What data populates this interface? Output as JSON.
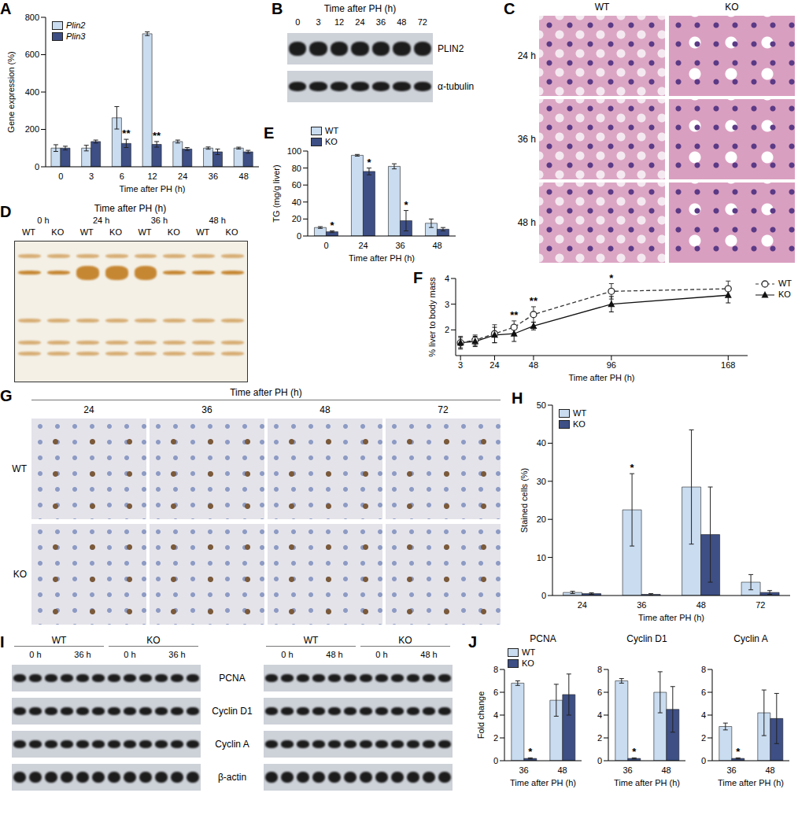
{
  "chart_data": [
    {
      "panel": "A",
      "type": "bar",
      "y_label": "Gene expression (%)",
      "x_label": "Time after PH (h)",
      "categories": [
        "0",
        "3",
        "6",
        "12",
        "24",
        "36",
        "48"
      ],
      "series": [
        {
          "name": "Plin2",
          "color": "#c9dcf0",
          "values": [
            100,
            100,
            262,
            712,
            135,
            100,
            100
          ],
          "errors": [
            18,
            15,
            60,
            10,
            8,
            6,
            5
          ]
        },
        {
          "name": "Plin3",
          "color": "#3d4f85",
          "values": [
            100,
            135,
            125,
            120,
            95,
            80,
            80
          ],
          "errors": [
            10,
            8,
            22,
            15,
            8,
            15,
            8
          ],
          "annotations": [
            null,
            null,
            "**",
            "**",
            null,
            null,
            null
          ]
        }
      ],
      "ylim": [
        0,
        800
      ],
      "yticks": [
        0,
        200,
        400,
        600,
        800
      ],
      "legend": "upper left"
    },
    {
      "panel": "E",
      "type": "bar",
      "y_label": "TG (mg/g liver)",
      "x_label": "Time after PH (h)",
      "categories": [
        "0",
        "24",
        "36",
        "48"
      ],
      "series": [
        {
          "name": "WT",
          "color": "#c9dcf0",
          "values": [
            10,
            95,
            82,
            15
          ],
          "errors": [
            1,
            1,
            3,
            5
          ]
        },
        {
          "name": "KO",
          "color": "#3d4f85",
          "values": [
            5,
            76,
            18,
            8
          ],
          "errors": [
            1,
            4,
            12,
            2
          ],
          "annotations": [
            "*",
            "*",
            "*",
            null
          ]
        }
      ],
      "ylim": [
        0,
        100
      ],
      "yticks": [
        0,
        20,
        40,
        60,
        80,
        100
      ],
      "legend": "top"
    },
    {
      "panel": "F",
      "type": "line",
      "y_label": "% liver to body mass",
      "x_label": "Time after PH (h)",
      "x": [
        3,
        12,
        24,
        36,
        48,
        96,
        168
      ],
      "xlim": [
        0,
        180
      ],
      "xticks": [
        3,
        24,
        48,
        96,
        168
      ],
      "ylim": [
        1,
        4
      ],
      "yticks": [
        2,
        3,
        4
      ],
      "legend": "right",
      "series": [
        {
          "name": "WT",
          "color": "#333333",
          "marker": "circle",
          "line_style": "dashed",
          "values": [
            1.5,
            1.6,
            1.85,
            2.1,
            2.6,
            3.5,
            3.6
          ],
          "errors": [
            0.25,
            0.2,
            0.35,
            0.25,
            0.3,
            0.3,
            0.3
          ],
          "annotations": [
            null,
            null,
            null,
            "**",
            "**",
            "*",
            null
          ]
        },
        {
          "name": "KO",
          "color": "#111111",
          "marker": "triangle",
          "line_style": "solid",
          "values": [
            1.5,
            1.55,
            1.8,
            1.85,
            2.15,
            3.0,
            3.35
          ],
          "errors": [
            0.2,
            0.2,
            0.3,
            0.3,
            0.15,
            0.3,
            0.3
          ]
        }
      ]
    },
    {
      "panel": "H",
      "type": "bar",
      "y_label": "Stained cells (%)",
      "x_label": "Time after PH (h)",
      "categories": [
        "24",
        "36",
        "48",
        "72"
      ],
      "series": [
        {
          "name": "WT",
          "color": "#c9dcf0",
          "values": [
            0.8,
            22.5,
            28.5,
            3.5
          ],
          "errors": [
            0.3,
            9.5,
            15,
            2
          ],
          "annotations": [
            null,
            "*",
            null,
            null
          ]
        },
        {
          "name": "KO",
          "color": "#3d4f85",
          "values": [
            0.5,
            0.3,
            16,
            0.8
          ],
          "errors": [
            0.2,
            0.2,
            12.5,
            0.5
          ]
        }
      ],
      "ylim": [
        0,
        50
      ],
      "yticks": [
        0,
        10,
        20,
        30,
        40,
        50
      ],
      "legend": "upper left"
    },
    {
      "panel": "J",
      "type": "bar",
      "title": "PCNA",
      "y_label": "Fold change",
      "x_label": "Time after PH (h)",
      "categories": [
        "36",
        "48"
      ],
      "series": [
        {
          "name": "WT",
          "color": "#c9dcf0",
          "values": [
            6.8,
            5.3
          ],
          "errors": [
            0.2,
            1.4
          ]
        },
        {
          "name": "KO",
          "color": "#3d4f85",
          "values": [
            0.2,
            5.8
          ],
          "errors": [
            0.05,
            1.8
          ],
          "annotations": [
            "*",
            null
          ]
        }
      ],
      "ylim": [
        0,
        8
      ],
      "yticks": [
        0,
        2,
        4,
        6,
        8
      ],
      "legend": "top"
    },
    {
      "type": "bar",
      "title": "Cyclin D1",
      "x_label": "Time after PH (h)",
      "categories": [
        "36",
        "48"
      ],
      "series": [
        {
          "name": "WT",
          "color": "#c9dcf0",
          "values": [
            7.0,
            6.0
          ],
          "errors": [
            0.2,
            1.8
          ]
        },
        {
          "name": "KO",
          "color": "#3d4f85",
          "values": [
            0.2,
            4.5
          ],
          "errors": [
            0.05,
            2.0
          ],
          "annotations": [
            "*",
            null
          ]
        }
      ],
      "ylim": [
        0,
        8
      ],
      "yticks": [
        0,
        2,
        4,
        6,
        8
      ]
    },
    {
      "type": "bar",
      "title": "Cyclin A",
      "x_label": "Time after PH (h)",
      "categories": [
        "36",
        "48"
      ],
      "series": [
        {
          "name": "WT",
          "color": "#c9dcf0",
          "values": [
            3.0,
            4.2
          ],
          "errors": [
            0.3,
            2.0
          ]
        },
        {
          "name": "KO",
          "color": "#3d4f85",
          "values": [
            0.2,
            3.7
          ],
          "errors": [
            0.05,
            2.2
          ],
          "annotations": [
            "*",
            null
          ]
        }
      ],
      "ylim": [
        0,
        8
      ],
      "yticks": [
        0,
        2,
        4,
        6,
        8
      ]
    }
  ],
  "images": [
    {
      "panel": "B",
      "title": "Time after PH (h)",
      "lanes": [
        "0",
        "3",
        "12",
        "24",
        "36",
        "48",
        "72"
      ],
      "rows": [
        "PLIN2",
        "α-tubulin"
      ]
    },
    {
      "panel": "C",
      "columns": [
        "WT",
        "KO"
      ],
      "rows": [
        "24 h",
        "36 h",
        "48 h"
      ]
    },
    {
      "panel": "D",
      "title": "Time after PH (h)",
      "groups": [
        "0 h",
        "24 h",
        "36 h",
        "48 h"
      ],
      "lanes": [
        "WT",
        "KO"
      ]
    },
    {
      "panel": "G",
      "title": "Time after PH (h)",
      "columns": [
        "24",
        "36",
        "48",
        "72"
      ],
      "rows": [
        "WT",
        "KO"
      ]
    },
    {
      "panel": "I",
      "blots": [
        {
          "groups": [
            "WT",
            "KO"
          ],
          "times": [
            "0 h",
            "36 h"
          ]
        },
        {
          "groups": [
            "WT",
            "KO"
          ],
          "times": [
            "0 h",
            "48 h"
          ]
        }
      ],
      "rows": [
        "PCNA",
        "Cyclin D1",
        "Cyclin A",
        "β-actin"
      ]
    }
  ]
}
